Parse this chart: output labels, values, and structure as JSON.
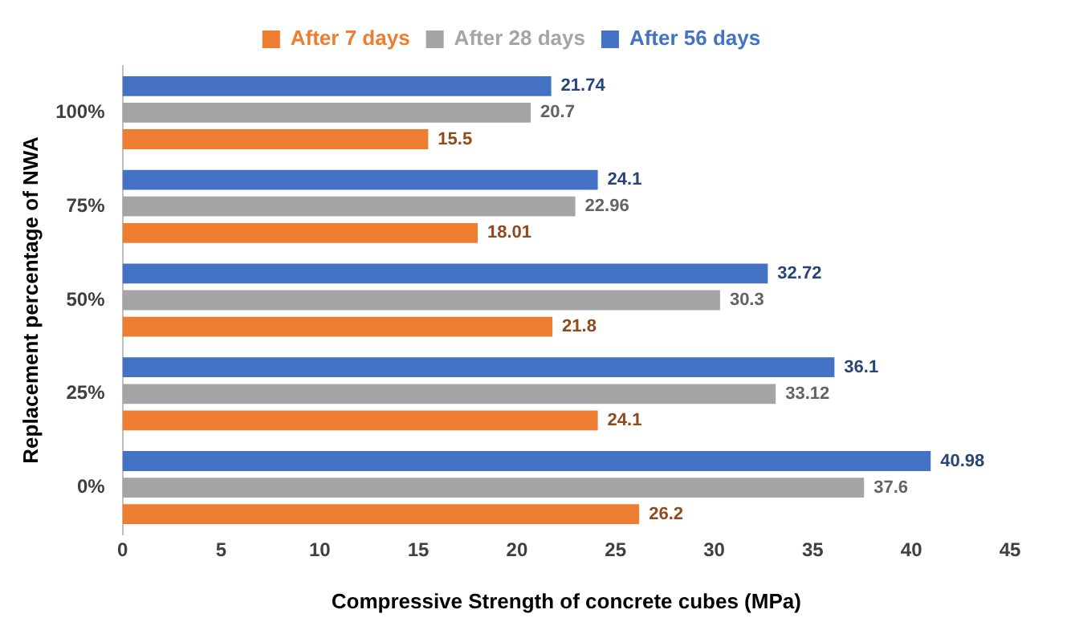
{
  "chart_data": {
    "type": "bar",
    "orientation": "horizontal",
    "xlabel": "Compressive Strength of concrete cubes (MPa)",
    "ylabel": "Replacement percentage of NWA",
    "categories": [
      "100%",
      "75%",
      "50%",
      "25%",
      "0%"
    ],
    "series": [
      {
        "name": "After 7 days",
        "color": "#ed7d31",
        "values": [
          15.5,
          18.01,
          21.8,
          24.1,
          26.2
        ]
      },
      {
        "name": "After 28 days",
        "color": "#a5a5a5",
        "values": [
          20.7,
          22.96,
          30.3,
          33.12,
          37.6
        ]
      },
      {
        "name": "After 56 days",
        "color": "#4472c4",
        "values": [
          21.74,
          24.1,
          32.72,
          36.1,
          40.98
        ]
      }
    ],
    "xlim": [
      0,
      45
    ],
    "xticks": [
      0,
      5,
      10,
      15,
      20,
      25,
      30,
      35,
      40,
      45
    ],
    "grid": false,
    "legend": "top",
    "data_labels": true
  }
}
